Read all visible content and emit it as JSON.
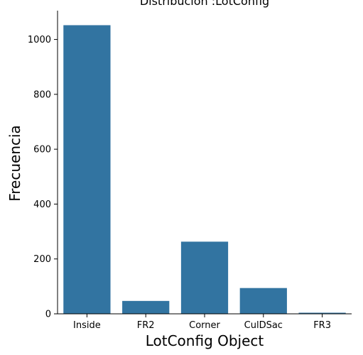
{
  "chart_data": {
    "type": "bar",
    "title": "Distribución :LotConfig",
    "xlabel": "LotConfig Object",
    "ylabel": "Frecuencia",
    "categories": [
      "Inside",
      "FR2",
      "Corner",
      "CulDSac",
      "FR3"
    ],
    "values": [
      1052,
      47,
      263,
      94,
      4
    ],
    "ylim": [
      0,
      1105
    ],
    "yticks": [
      0,
      200,
      400,
      600,
      800,
      1000
    ],
    "color": "#3274a1",
    "grid": false,
    "legend": null
  }
}
